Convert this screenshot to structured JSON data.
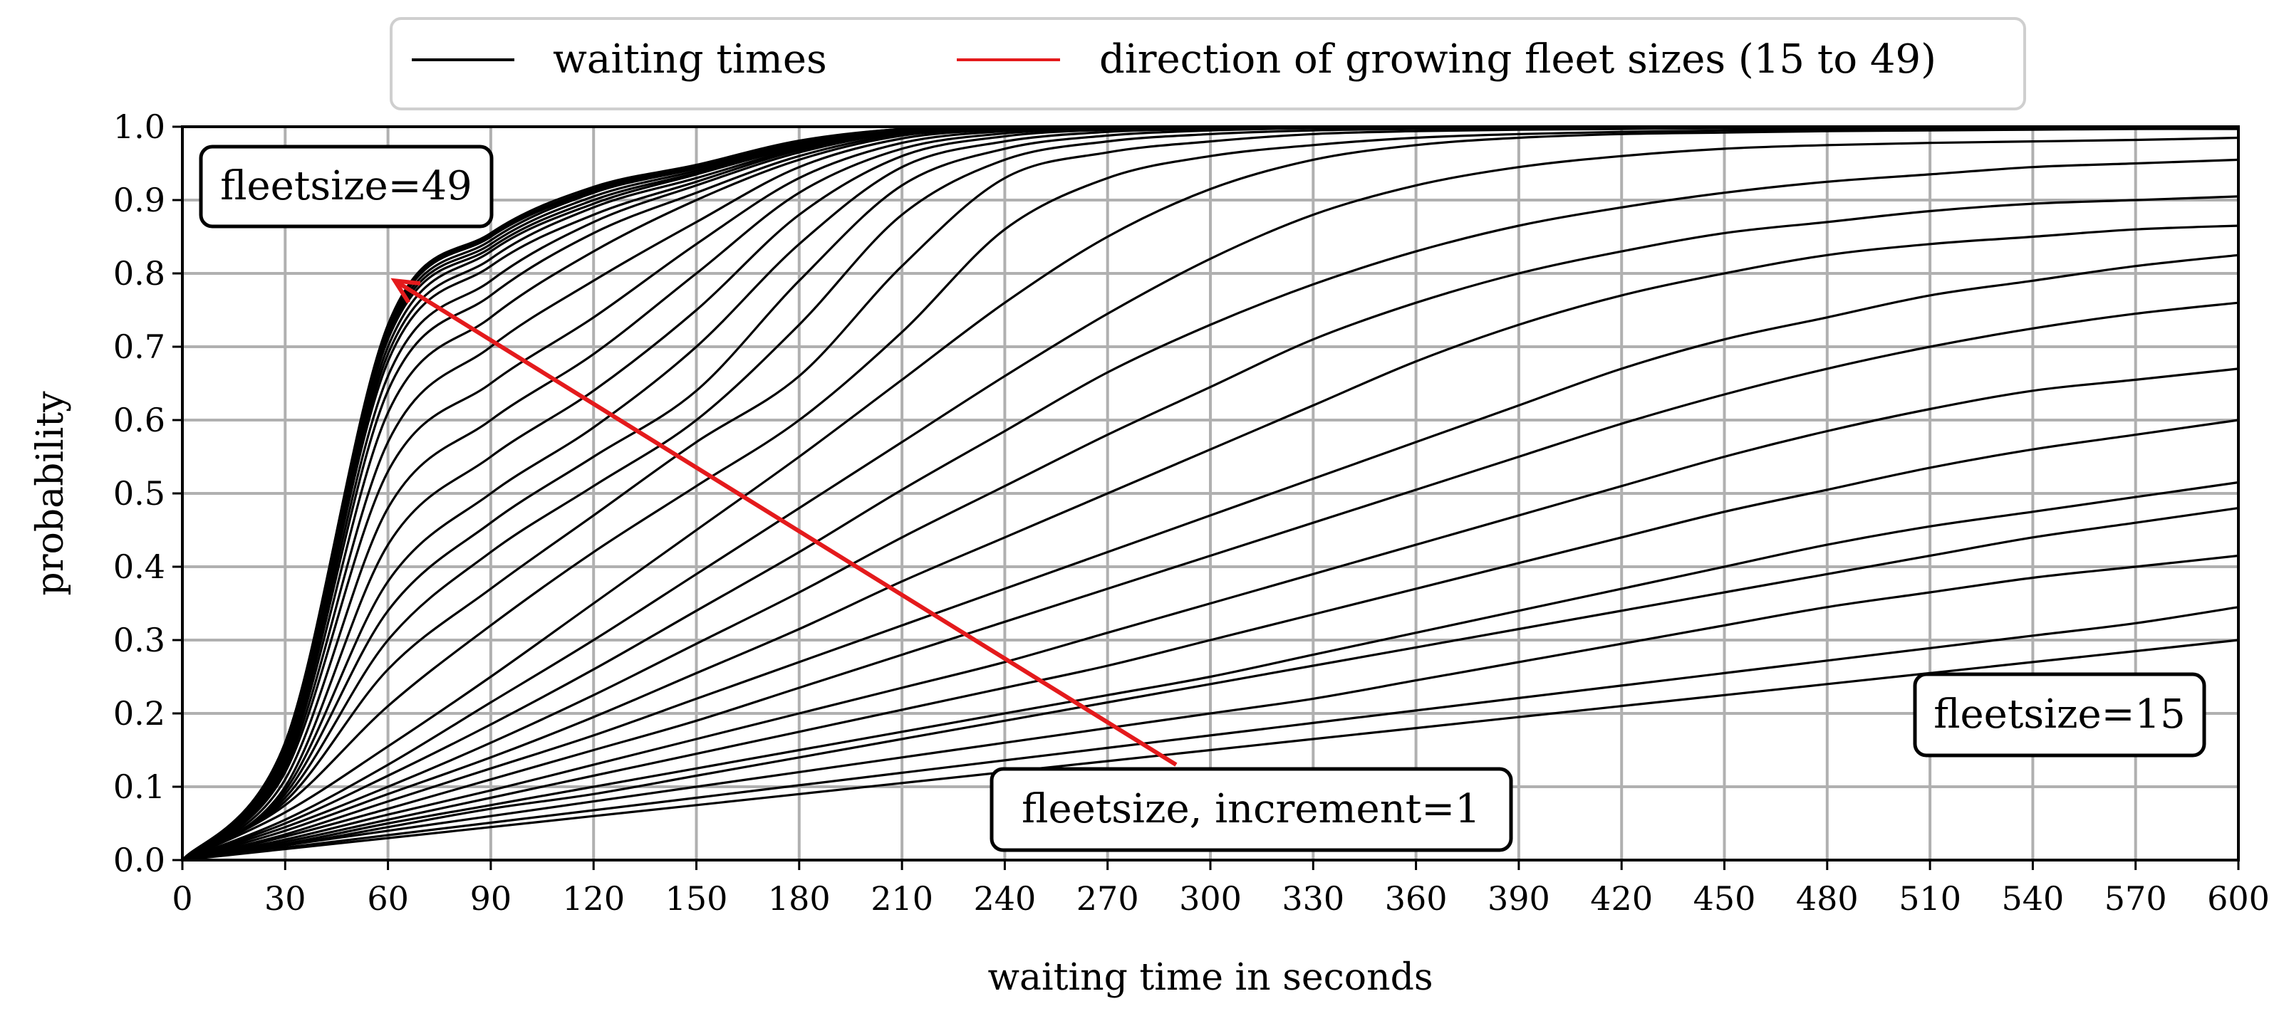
{
  "chart_data": {
    "type": "line",
    "xlabel": "waiting time in seconds",
    "ylabel": "probability",
    "xlim": [
      0,
      600
    ],
    "ylim": [
      0,
      1.0
    ],
    "x_ticks": [
      0,
      30,
      60,
      90,
      120,
      150,
      180,
      210,
      240,
      270,
      300,
      330,
      360,
      390,
      420,
      450,
      480,
      510,
      540,
      570,
      600
    ],
    "y_ticks": [
      "0.0",
      "0.1",
      "0.2",
      "0.3",
      "0.4",
      "0.5",
      "0.6",
      "0.7",
      "0.8",
      "0.9",
      "1.0"
    ],
    "grid": true,
    "legend": {
      "placement": "top-center",
      "entries": [
        {
          "label": "waiting times",
          "color": "#000000"
        },
        {
          "label": "direction of growing fleet sizes (15 to 49)",
          "color": "#e41a1c"
        }
      ]
    },
    "annotations": {
      "top_left": "fleetsize=49",
      "bottom_right": "fleetsize=15",
      "arrow_label": "fleetsize, increment=1",
      "arrow": {
        "from": [
          290,
          0.13
        ],
        "to": [
          62,
          0.79
        ],
        "color": "#e41a1c"
      }
    },
    "series_color": "#000000",
    "x": [
      0,
      30,
      60,
      90,
      120,
      150,
      180,
      210,
      240,
      270,
      300,
      330,
      360,
      390,
      420,
      450,
      480,
      510,
      540,
      570,
      600
    ],
    "series": [
      {
        "values": [
          0,
          0.015,
          0.03,
          0.045,
          0.06,
          0.075,
          0.09,
          0.105,
          0.12,
          0.135,
          0.15,
          0.165,
          0.18,
          0.195,
          0.21,
          0.225,
          0.24,
          0.255,
          0.27,
          0.285,
          0.3
        ]
      },
      {
        "values": [
          0,
          0.017,
          0.034,
          0.051,
          0.068,
          0.085,
          0.102,
          0.119,
          0.136,
          0.153,
          0.17,
          0.187,
          0.204,
          0.221,
          0.238,
          0.255,
          0.272,
          0.289,
          0.306,
          0.323,
          0.345
        ]
      },
      {
        "values": [
          0,
          0.02,
          0.04,
          0.06,
          0.08,
          0.1,
          0.12,
          0.14,
          0.16,
          0.18,
          0.2,
          0.22,
          0.245,
          0.27,
          0.295,
          0.32,
          0.345,
          0.365,
          0.385,
          0.4,
          0.415
        ]
      },
      {
        "values": [
          0,
          0.02,
          0.045,
          0.07,
          0.09,
          0.115,
          0.14,
          0.165,
          0.19,
          0.215,
          0.24,
          0.265,
          0.29,
          0.315,
          0.34,
          0.365,
          0.39,
          0.415,
          0.44,
          0.46,
          0.48
        ]
      },
      {
        "values": [
          0,
          0.022,
          0.05,
          0.075,
          0.1,
          0.125,
          0.15,
          0.175,
          0.2,
          0.225,
          0.25,
          0.28,
          0.31,
          0.34,
          0.37,
          0.4,
          0.43,
          0.455,
          0.475,
          0.495,
          0.515
        ]
      },
      {
        "values": [
          0,
          0.025,
          0.055,
          0.085,
          0.115,
          0.145,
          0.175,
          0.205,
          0.235,
          0.265,
          0.3,
          0.335,
          0.37,
          0.405,
          0.44,
          0.475,
          0.505,
          0.535,
          0.56,
          0.58,
          0.6
        ]
      },
      {
        "values": [
          0,
          0.028,
          0.062,
          0.095,
          0.13,
          0.165,
          0.2,
          0.235,
          0.27,
          0.31,
          0.35,
          0.39,
          0.43,
          0.47,
          0.51,
          0.55,
          0.585,
          0.615,
          0.64,
          0.655,
          0.67
        ]
      },
      {
        "values": [
          0,
          0.032,
          0.07,
          0.11,
          0.15,
          0.19,
          0.235,
          0.28,
          0.325,
          0.37,
          0.415,
          0.46,
          0.505,
          0.55,
          0.595,
          0.635,
          0.67,
          0.7,
          0.725,
          0.745,
          0.76
        ]
      },
      {
        "values": [
          0,
          0.035,
          0.08,
          0.125,
          0.17,
          0.22,
          0.27,
          0.32,
          0.37,
          0.42,
          0.47,
          0.52,
          0.57,
          0.62,
          0.67,
          0.71,
          0.74,
          0.77,
          0.79,
          0.81,
          0.825
        ]
      },
      {
        "values": [
          0,
          0.04,
          0.09,
          0.14,
          0.195,
          0.255,
          0.315,
          0.38,
          0.44,
          0.5,
          0.56,
          0.62,
          0.68,
          0.73,
          0.77,
          0.8,
          0.825,
          0.84,
          0.85,
          0.86,
          0.865
        ]
      },
      {
        "values": [
          0,
          0.045,
          0.1,
          0.16,
          0.225,
          0.295,
          0.365,
          0.44,
          0.51,
          0.58,
          0.645,
          0.71,
          0.76,
          0.8,
          0.83,
          0.855,
          0.87,
          0.885,
          0.895,
          0.9,
          0.905
        ]
      },
      {
        "values": [
          0,
          0.05,
          0.115,
          0.185,
          0.26,
          0.34,
          0.42,
          0.505,
          0.585,
          0.665,
          0.73,
          0.785,
          0.83,
          0.865,
          0.89,
          0.91,
          0.925,
          0.935,
          0.945,
          0.95,
          0.955
        ]
      },
      {
        "values": [
          0,
          0.055,
          0.13,
          0.215,
          0.3,
          0.39,
          0.48,
          0.57,
          0.66,
          0.745,
          0.82,
          0.88,
          0.92,
          0.945,
          0.96,
          0.97,
          0.975,
          0.978,
          0.98,
          0.982,
          0.985
        ]
      },
      {
        "values": [
          0,
          0.065,
          0.155,
          0.25,
          0.35,
          0.45,
          0.55,
          0.655,
          0.76,
          0.85,
          0.915,
          0.955,
          0.975,
          0.985,
          0.99,
          0.992,
          0.994,
          0.995,
          0.996,
          0.997,
          0.997
        ]
      },
      {
        "values": [
          0,
          0.075,
          0.21,
          0.32,
          0.42,
          0.51,
          0.6,
          0.72,
          0.86,
          0.93,
          0.96,
          0.975,
          0.985,
          0.99,
          0.993,
          0.995,
          0.996,
          0.997,
          0.998,
          0.998,
          0.999
        ]
      },
      {
        "values": [
          0,
          0.08,
          0.26,
          0.37,
          0.47,
          0.57,
          0.66,
          0.81,
          0.93,
          0.965,
          0.98,
          0.99,
          0.994,
          0.996,
          0.997,
          0.998,
          0.998,
          0.999,
          0.999,
          0.999,
          1.0
        ]
      },
      {
        "values": [
          0,
          0.085,
          0.3,
          0.42,
          0.51,
          0.6,
          0.73,
          0.88,
          0.955,
          0.98,
          0.99,
          0.995,
          0.997,
          0.998,
          0.999,
          0.999,
          1.0,
          1.0,
          1.0,
          1.0,
          1.0
        ]
      },
      {
        "values": [
          0,
          0.09,
          0.34,
          0.46,
          0.55,
          0.64,
          0.79,
          0.92,
          0.97,
          0.988,
          0.995,
          0.998,
          0.999,
          1.0,
          1.0,
          1.0,
          1.0,
          1.0,
          1.0,
          1.0,
          1.0
        ]
      },
      {
        "values": [
          0,
          0.095,
          0.38,
          0.5,
          0.59,
          0.7,
          0.84,
          0.945,
          0.98,
          0.993,
          0.997,
          0.999,
          1.0,
          1.0,
          1.0,
          1.0,
          1.0,
          1.0,
          1.0,
          1.0,
          1.0
        ]
      },
      {
        "values": [
          0,
          0.1,
          0.43,
          0.55,
          0.64,
          0.75,
          0.88,
          0.96,
          0.987,
          0.996,
          0.999,
          1.0,
          1.0,
          1.0,
          1.0,
          1.0,
          1.0,
          1.0,
          1.0,
          1.0,
          1.0
        ]
      },
      {
        "values": [
          0,
          0.11,
          0.48,
          0.6,
          0.69,
          0.8,
          0.91,
          0.97,
          0.991,
          0.997,
          0.999,
          1.0,
          1.0,
          1.0,
          1.0,
          1.0,
          1.0,
          1.0,
          1.0,
          1.0,
          1.0
        ]
      },
      {
        "values": [
          0,
          0.12,
          0.53,
          0.65,
          0.74,
          0.84,
          0.93,
          0.978,
          0.994,
          0.998,
          1.0,
          1.0,
          1.0,
          1.0,
          1.0,
          1.0,
          1.0,
          1.0,
          1.0,
          1.0,
          1.0
        ]
      },
      {
        "values": [
          0,
          0.125,
          0.57,
          0.7,
          0.79,
          0.87,
          0.945,
          0.984,
          0.996,
          0.999,
          1.0,
          1.0,
          1.0,
          1.0,
          1.0,
          1.0,
          1.0,
          1.0,
          1.0,
          1.0,
          1.0
        ]
      },
      {
        "values": [
          0,
          0.13,
          0.61,
          0.74,
          0.83,
          0.9,
          0.955,
          0.988,
          0.997,
          0.999,
          1.0,
          1.0,
          1.0,
          1.0,
          1.0,
          1.0,
          1.0,
          1.0,
          1.0,
          1.0,
          1.0
        ]
      },
      {
        "values": [
          0,
          0.135,
          0.64,
          0.77,
          0.855,
          0.91,
          0.96,
          0.99,
          0.998,
          1.0,
          1.0,
          1.0,
          1.0,
          1.0,
          1.0,
          1.0,
          1.0,
          1.0,
          1.0,
          1.0,
          1.0
        ]
      },
      {
        "values": [
          0,
          0.14,
          0.66,
          0.79,
          0.87,
          0.92,
          0.965,
          0.992,
          0.998,
          1.0,
          1.0,
          1.0,
          1.0,
          1.0,
          1.0,
          1.0,
          1.0,
          1.0,
          1.0,
          1.0,
          1.0
        ]
      },
      {
        "values": [
          0,
          0.145,
          0.68,
          0.81,
          0.88,
          0.925,
          0.968,
          0.993,
          0.999,
          1.0,
          1.0,
          1.0,
          1.0,
          1.0,
          1.0,
          1.0,
          1.0,
          1.0,
          1.0,
          1.0,
          1.0
        ]
      },
      {
        "values": [
          0,
          0.15,
          0.69,
          0.82,
          0.89,
          0.93,
          0.97,
          0.994,
          0.999,
          1.0,
          1.0,
          1.0,
          1.0,
          1.0,
          1.0,
          1.0,
          1.0,
          1.0,
          1.0,
          1.0,
          1.0
        ]
      },
      {
        "values": [
          0,
          0.15,
          0.7,
          0.83,
          0.895,
          0.935,
          0.972,
          0.995,
          0.999,
          1.0,
          1.0,
          1.0,
          1.0,
          1.0,
          1.0,
          1.0,
          1.0,
          1.0,
          1.0,
          1.0,
          1.0
        ]
      },
      {
        "values": [
          0,
          0.155,
          0.71,
          0.835,
          0.9,
          0.937,
          0.974,
          0.995,
          0.999,
          1.0,
          1.0,
          1.0,
          1.0,
          1.0,
          1.0,
          1.0,
          1.0,
          1.0,
          1.0,
          1.0,
          1.0
        ]
      },
      {
        "values": [
          0,
          0.155,
          0.715,
          0.84,
          0.905,
          0.94,
          0.976,
          0.996,
          0.999,
          1.0,
          1.0,
          1.0,
          1.0,
          1.0,
          1.0,
          1.0,
          1.0,
          1.0,
          1.0,
          1.0,
          1.0
        ]
      },
      {
        "values": [
          0,
          0.16,
          0.72,
          0.845,
          0.91,
          0.943,
          0.978,
          0.996,
          0.999,
          1.0,
          1.0,
          1.0,
          1.0,
          1.0,
          1.0,
          1.0,
          1.0,
          1.0,
          1.0,
          1.0,
          1.0
        ]
      },
      {
        "values": [
          0,
          0.16,
          0.725,
          0.85,
          0.912,
          0.945,
          0.979,
          0.997,
          1.0,
          1.0,
          1.0,
          1.0,
          1.0,
          1.0,
          1.0,
          1.0,
          1.0,
          1.0,
          1.0,
          1.0,
          1.0
        ]
      },
      {
        "values": [
          0,
          0.16,
          0.728,
          0.852,
          0.915,
          0.947,
          0.98,
          0.997,
          1.0,
          1.0,
          1.0,
          1.0,
          1.0,
          1.0,
          1.0,
          1.0,
          1.0,
          1.0,
          1.0,
          1.0,
          1.0
        ]
      },
      {
        "values": [
          0,
          0.16,
          0.73,
          0.855,
          0.918,
          0.948,
          0.981,
          0.997,
          1.0,
          1.0,
          1.0,
          1.0,
          1.0,
          1.0,
          1.0,
          1.0,
          1.0,
          1.0,
          1.0,
          1.0,
          1.0
        ]
      }
    ]
  }
}
